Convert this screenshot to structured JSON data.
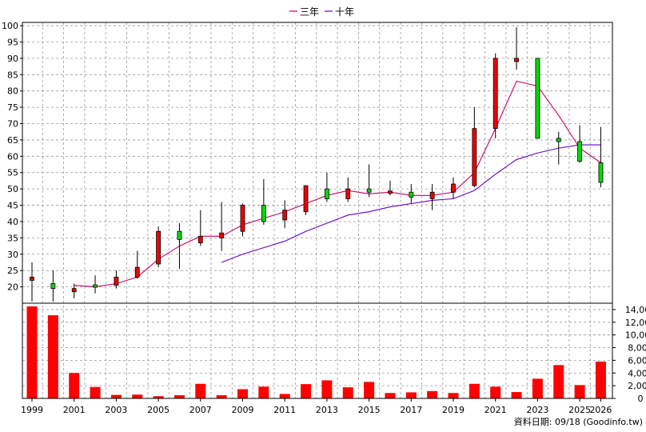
{
  "chart_data": {
    "type": "candlestick",
    "legend": [
      {
        "name": "三年",
        "color": "#cc0066"
      },
      {
        "name": "十年",
        "color": "#6600cc"
      }
    ],
    "legend_placement": "top-center",
    "grid": true,
    "price_axis": {
      "ylim": [
        15,
        101
      ],
      "ticks": [
        20,
        25,
        30,
        35,
        40,
        45,
        50,
        55,
        60,
        65,
        70,
        75,
        80,
        85,
        90,
        95,
        100
      ]
    },
    "volume_axis": {
      "ylim": [
        0,
        15000
      ],
      "ticks": [
        0,
        2000,
        4000,
        6000,
        8000,
        10000,
        12000,
        14000
      ],
      "tick_labels": [
        "0",
        "2,000",
        "4,000",
        "6,000",
        "8,000",
        "10,000",
        "12,000",
        "14,000"
      ]
    },
    "years": [
      1999,
      2000,
      2001,
      2002,
      2003,
      2004,
      2005,
      2006,
      2007,
      2008,
      2009,
      2010,
      2011,
      2012,
      2013,
      2014,
      2015,
      2016,
      2017,
      2018,
      2019,
      2020,
      2021,
      2022,
      2023,
      2024,
      2025,
      2026
    ],
    "x_tick_labels": [
      "1999",
      "2001",
      "2003",
      "2005",
      "2007",
      "2009",
      "2011",
      "2013",
      "2015",
      "2017",
      "2019",
      "2021",
      "2023",
      "2025",
      "2026"
    ],
    "candles": [
      {
        "year": 1999,
        "open": 22.0,
        "high": 27.5,
        "low": 15.5,
        "close": 23.0
      },
      {
        "year": 2000,
        "open": 21.0,
        "high": 25.0,
        "low": 15.5,
        "close": 19.5
      },
      {
        "year": 2001,
        "open": 18.5,
        "high": 21.0,
        "low": 16.5,
        "close": 19.5
      },
      {
        "year": 2002,
        "open": 20.5,
        "high": 23.5,
        "low": 18.0,
        "close": 20.0
      },
      {
        "year": 2003,
        "open": 20.5,
        "high": 25.0,
        "low": 19.5,
        "close": 23.0
      },
      {
        "year": 2004,
        "open": 23.0,
        "high": 31.0,
        "low": 22.5,
        "close": 26.0
      },
      {
        "year": 2005,
        "open": 27.0,
        "high": 38.5,
        "low": 26.0,
        "close": 37.0
      },
      {
        "year": 2006,
        "open": 37.0,
        "high": 39.5,
        "low": 25.5,
        "close": 34.5
      },
      {
        "year": 2007,
        "open": 33.5,
        "high": 43.5,
        "low": 32.5,
        "close": 35.5
      },
      {
        "year": 2008,
        "open": 35.0,
        "high": 46.0,
        "low": 31.0,
        "close": 36.5
      },
      {
        "year": 2009,
        "open": 37.0,
        "high": 45.5,
        "low": 35.5,
        "close": 45.0
      },
      {
        "year": 2010,
        "open": 45.0,
        "high": 53.0,
        "low": 39.0,
        "close": 40.0
      },
      {
        "year": 2011,
        "open": 40.5,
        "high": 46.5,
        "low": 38.0,
        "close": 43.5
      },
      {
        "year": 2012,
        "open": 43.0,
        "high": 51.0,
        "low": 42.0,
        "close": 51.0
      },
      {
        "year": 2013,
        "open": 50.0,
        "high": 55.0,
        "low": 46.0,
        "close": 47.0
      },
      {
        "year": 2014,
        "open": 47.0,
        "high": 53.5,
        "low": 46.0,
        "close": 50.0
      },
      {
        "year": 2015,
        "open": 50.0,
        "high": 57.5,
        "low": 47.5,
        "close": 49.0
      },
      {
        "year": 2016,
        "open": 49.0,
        "high": 52.5,
        "low": 48.0,
        "close": 49.0
      },
      {
        "year": 2017,
        "open": 49.0,
        "high": 51.5,
        "low": 45.5,
        "close": 47.5
      },
      {
        "year": 2018,
        "open": 47.0,
        "high": 51.5,
        "low": 43.5,
        "close": 49.0
      },
      {
        "year": 2019,
        "open": 49.0,
        "high": 53.5,
        "low": 47.0,
        "close": 51.5
      },
      {
        "year": 2020,
        "open": 51.0,
        "high": 75.0,
        "low": 50.5,
        "close": 68.5
      },
      {
        "year": 2021,
        "open": 68.5,
        "high": 91.5,
        "low": 65.5,
        "close": 90.0
      },
      {
        "year": 2022,
        "open": 89.0,
        "high": 99.5,
        "low": 86.5,
        "close": 90.0
      },
      {
        "year": 2023,
        "open": 90.0,
        "high": 90.0,
        "low": 65.5,
        "close": 65.5
      },
      {
        "year": 2024,
        "open": 65.5,
        "high": 67.5,
        "low": 57.5,
        "close": 64.5
      },
      {
        "year": 2025,
        "open": 64.5,
        "high": 69.5,
        "low": 58.0,
        "close": 58.5
      },
      {
        "year": 2026,
        "open": 58.0,
        "high": 69.0,
        "low": 50.5,
        "close": 52.0
      }
    ],
    "series": [
      {
        "name": "三年",
        "x": [
          2001,
          2002,
          2003,
          2004,
          2005,
          2006,
          2007,
          2008,
          2009,
          2010,
          2011,
          2012,
          2013,
          2014,
          2015,
          2016,
          2017,
          2018,
          2019,
          2020,
          2021,
          2022,
          2023,
          2024,
          2025,
          2026
        ],
        "values": [
          20.5,
          20.0,
          21.0,
          23.0,
          28.5,
          32.5,
          35.5,
          35.5,
          39.0,
          41.0,
          43.0,
          45.5,
          48.0,
          49.5,
          48.5,
          49.0,
          48.0,
          48.0,
          49.0,
          55.0,
          68.5,
          83.0,
          81.5,
          72.5,
          62.5,
          58.0
        ]
      },
      {
        "name": "十年",
        "x": [
          2008,
          2009,
          2010,
          2011,
          2012,
          2013,
          2014,
          2015,
          2016,
          2017,
          2018,
          2019,
          2020,
          2021,
          2022,
          2023,
          2024,
          2025,
          2026
        ],
        "values": [
          27.5,
          30.0,
          32.0,
          34.0,
          37.0,
          39.5,
          42.0,
          43.0,
          44.5,
          45.5,
          46.5,
          47.0,
          49.5,
          54.5,
          59.0,
          61.0,
          62.5,
          63.5,
          63.5
        ]
      }
    ],
    "volume": [
      {
        "year": 1999,
        "value": 14500
      },
      {
        "year": 2000,
        "value": 13100
      },
      {
        "year": 2001,
        "value": 4000
      },
      {
        "year": 2002,
        "value": 1800
      },
      {
        "year": 2003,
        "value": 550
      },
      {
        "year": 2004,
        "value": 600
      },
      {
        "year": 2005,
        "value": 350
      },
      {
        "year": 2006,
        "value": 500
      },
      {
        "year": 2007,
        "value": 2300
      },
      {
        "year": 2008,
        "value": 500
      },
      {
        "year": 2009,
        "value": 1450
      },
      {
        "year": 2010,
        "value": 1850
      },
      {
        "year": 2011,
        "value": 700
      },
      {
        "year": 2012,
        "value": 2250
      },
      {
        "year": 2013,
        "value": 2850
      },
      {
        "year": 2014,
        "value": 1750
      },
      {
        "year": 2015,
        "value": 2600
      },
      {
        "year": 2016,
        "value": 850
      },
      {
        "year": 2017,
        "value": 950
      },
      {
        "year": 2018,
        "value": 1150
      },
      {
        "year": 2019,
        "value": 850
      },
      {
        "year": 2020,
        "value": 2300
      },
      {
        "year": 2021,
        "value": 1850
      },
      {
        "year": 2022,
        "value": 1000
      },
      {
        "year": 2023,
        "value": 3100
      },
      {
        "year": 2024,
        "value": 5250
      },
      {
        "year": 2025,
        "value": 2100
      },
      {
        "year": 2026,
        "value": 5800
      }
    ],
    "colors": {
      "up_fill": "#ee0000",
      "down_fill": "#00dd00",
      "wick": "#000000",
      "volume": "#ff0000",
      "grid": "#999999",
      "frame": "#000000"
    },
    "source_note": "資料日期: 09/18 (Goodinfo.tw)"
  }
}
